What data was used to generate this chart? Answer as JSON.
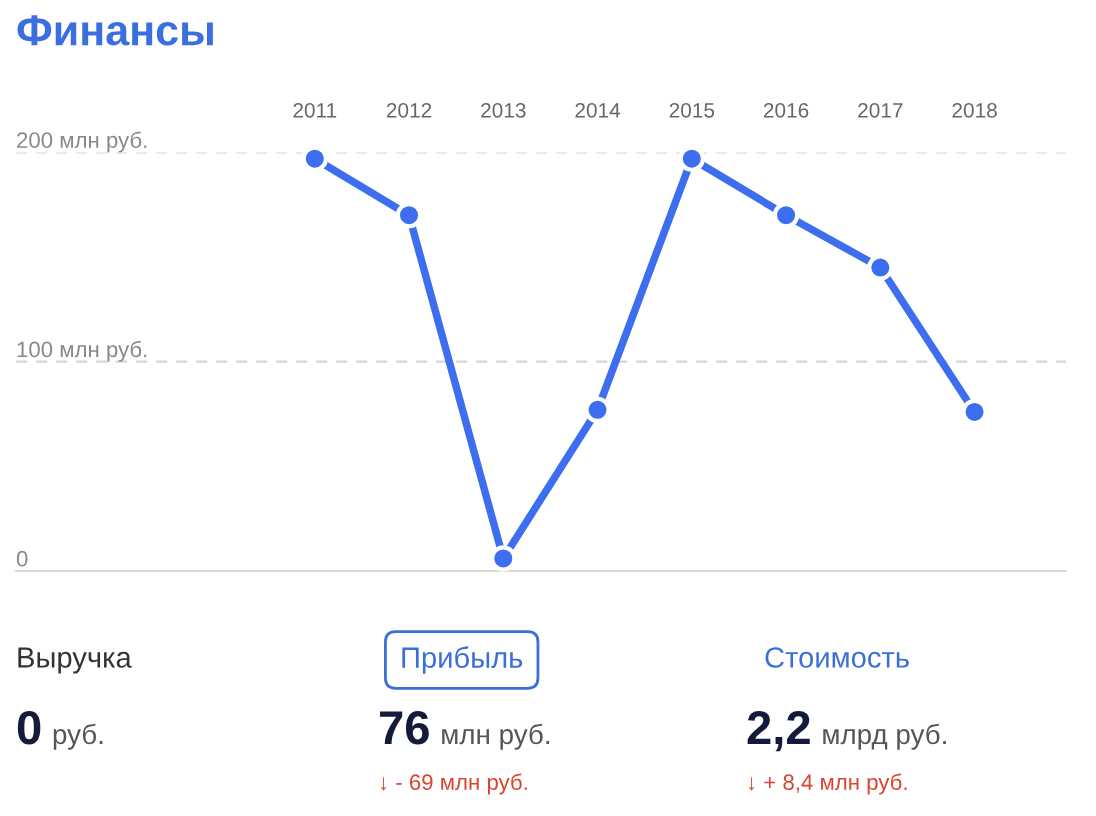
{
  "chart_data": [
    {
      "type": "line",
      "title": "Финансы",
      "categories": [
        "2011",
        "2012",
        "2013",
        "2014",
        "2015",
        "2016",
        "2017",
        "2018"
      ],
      "series": [
        {
          "color": "#3d6ef0",
          "values": [
            197,
            170,
            6,
            77,
            197,
            170,
            145,
            76
          ]
        }
      ],
      "ylim": [
        0,
        200
      ],
      "yticks": [
        0,
        {
          "value": 100,
          "label": "100 млн руб."
        },
        {
          "value": 200,
          "label": "200 млн руб."
        }
      ],
      "grid": "y",
      "marker": "circle",
      "line_style": "solid"
    },
    {
      "type": "other",
      "annotations": [
        "Выручка",
        "0",
        "руб.",
        "Прибыль",
        "76",
        "млн руб.",
        "↓ - 69 млн руб.",
        "Стоимость",
        "2,2",
        "млрд руб.",
        "↓ + 8,4 млн руб."
      ]
    }
  ]
}
